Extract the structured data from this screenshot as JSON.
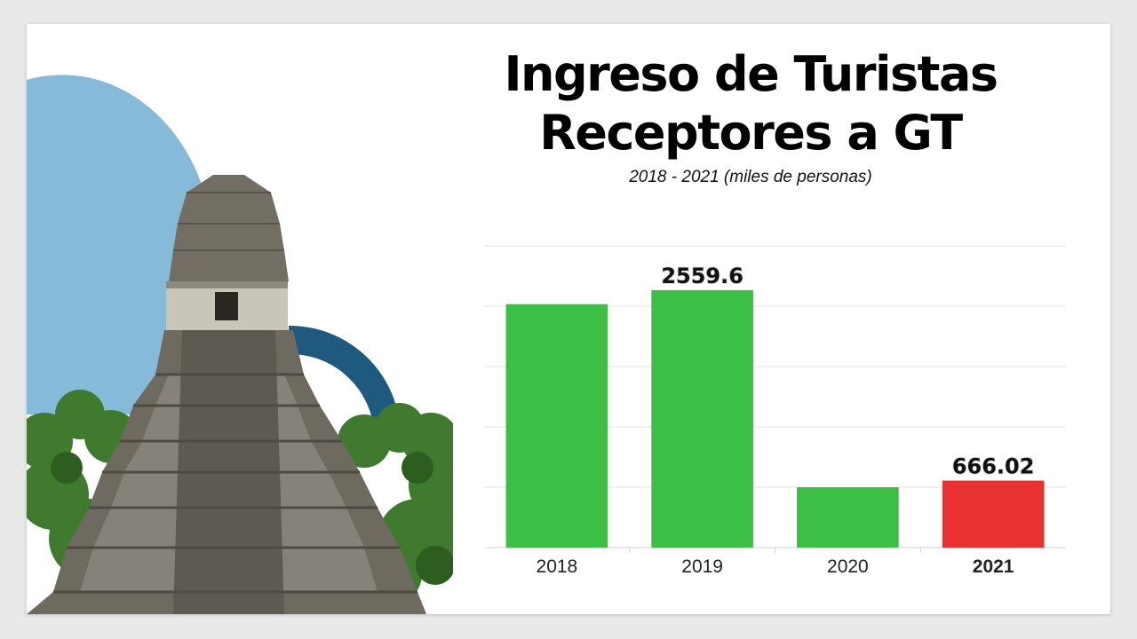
{
  "title": {
    "line1": "Ingreso de Turistas",
    "line2": "Receptores a GT"
  },
  "subtitle": "2018 - 2021 (miles de personas)",
  "colors": {
    "bar_default": "#3bbf45",
    "bar_highlight": "#e83232",
    "grid": "#e3e3e3",
    "circle_light": "#86bad9",
    "arc_dark": "#1e5a7f"
  },
  "chart_data": {
    "type": "bar",
    "categories": [
      "2018",
      "2019",
      "2020",
      "2021"
    ],
    "values": [
      2420,
      2559.6,
      600,
      666.02
    ],
    "data_labels": [
      "",
      "2559.6",
      "",
      "666.02"
    ],
    "highlight_index": 3,
    "ylim": [
      0,
      3000
    ],
    "grid": true,
    "title": "",
    "xlabel": "",
    "ylabel": ""
  }
}
